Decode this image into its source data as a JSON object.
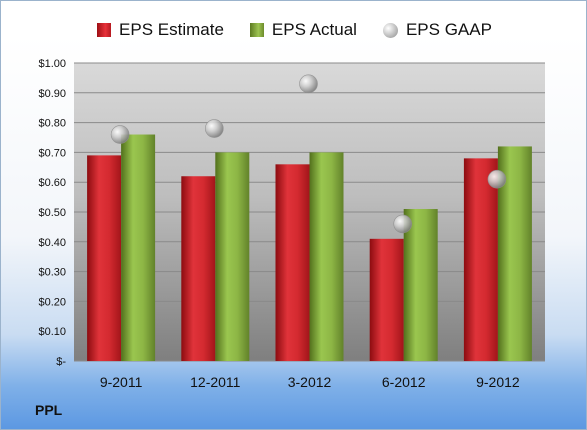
{
  "company": "PPL",
  "legend": {
    "estimate": "EPS Estimate",
    "actual": "EPS Actual",
    "gaap": "EPS GAAP"
  },
  "colors": {
    "estimate": "#d42a30",
    "actual": "#8db645",
    "gaap": "#bdbdbd"
  },
  "chart_data": {
    "type": "bar",
    "categories": [
      "9-2011",
      "12-2011",
      "3-2012",
      "6-2012",
      "9-2012"
    ],
    "series": [
      {
        "name": "EPS Estimate",
        "values": [
          0.69,
          0.62,
          0.66,
          0.41,
          0.68
        ]
      },
      {
        "name": "EPS Actual",
        "values": [
          0.76,
          0.7,
          0.7,
          0.51,
          0.72
        ]
      },
      {
        "name": "EPS GAAP",
        "values": [
          0.76,
          0.78,
          0.93,
          0.46,
          0.61
        ],
        "marker": "circle"
      }
    ],
    "ylim": [
      0,
      1.0
    ],
    "yticks": [
      0,
      0.1,
      0.2,
      0.3,
      0.4,
      0.5,
      0.6,
      0.7,
      0.8,
      0.9,
      1.0
    ],
    "ytick_labels": [
      "$-",
      "$0.10",
      "$0.20",
      "$0.30",
      "$0.40",
      "$0.50",
      "$0.60",
      "$0.70",
      "$0.80",
      "$0.90",
      "$1.00"
    ],
    "grid": true,
    "legend_position": "top"
  }
}
